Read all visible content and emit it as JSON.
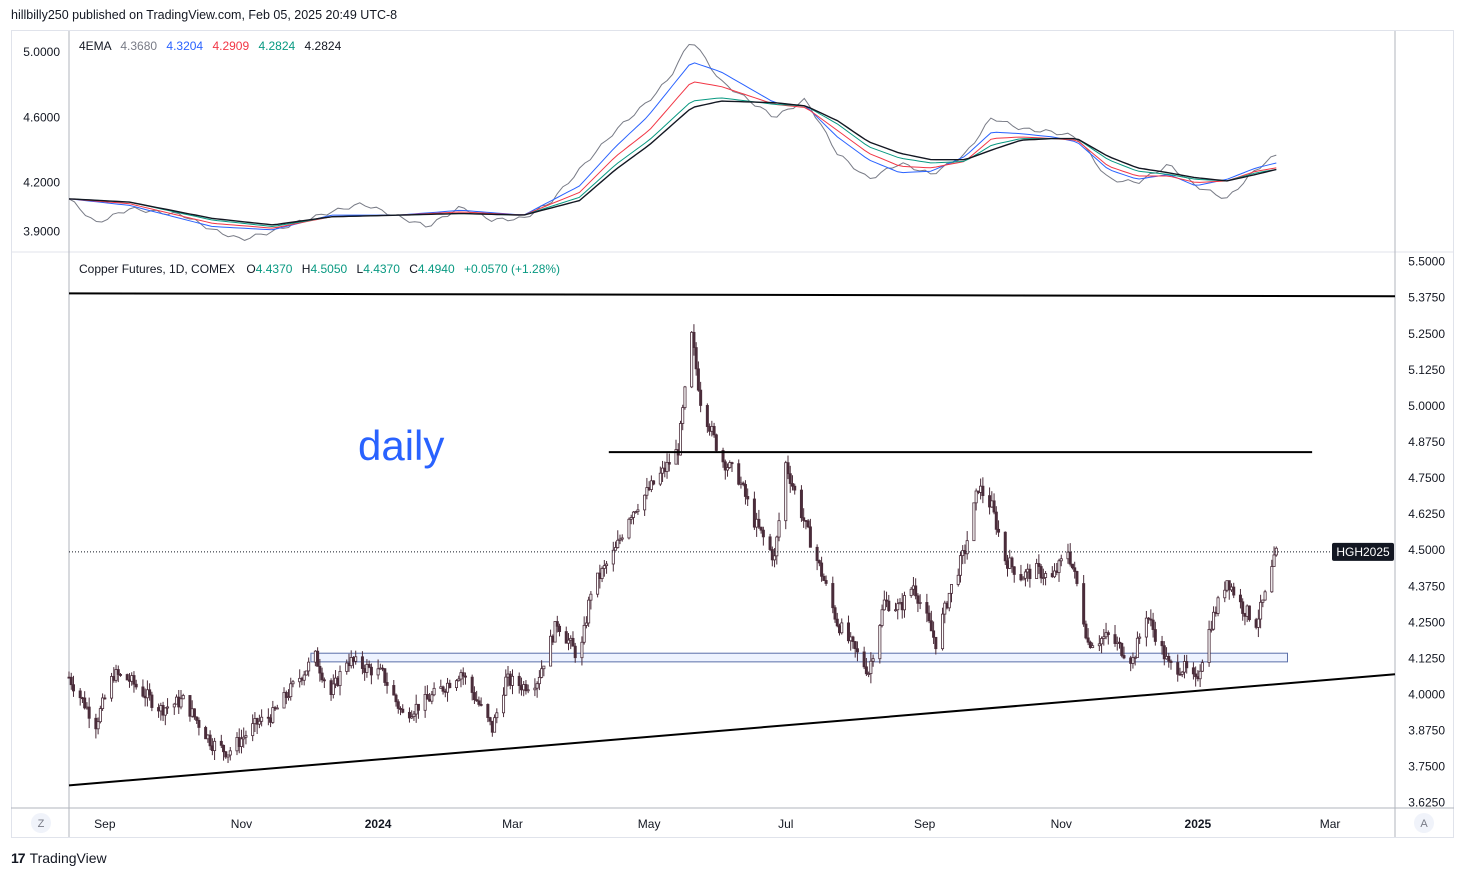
{
  "header": {
    "text": "hillbilly250 published on TradingView.com, Feb 05, 2025 20:49 UTC-8"
  },
  "footer": {
    "brand": "TradingView",
    "logo": "17"
  },
  "ema_legend": {
    "name": "4EMA",
    "values": [
      {
        "text": "4.3680",
        "color": "#787b86"
      },
      {
        "text": "4.3204",
        "color": "#2962ff"
      },
      {
        "text": "4.2909",
        "color": "#f23645"
      },
      {
        "text": "4.2824",
        "color": "#089981"
      },
      {
        "text": "4.2824",
        "color": "#131722"
      }
    ]
  },
  "ohlc_legend": {
    "symbol": "Copper Futures, 1D, COMEX",
    "o_label": "O",
    "o": "4.4370",
    "h_label": "H",
    "h": "4.5050",
    "l_label": "L",
    "l": "4.4370",
    "c_label": "C",
    "c": "4.4940",
    "change": "+0.0570 (+1.28%)",
    "value_color": "#089981"
  },
  "annotation": {
    "text": "daily",
    "color": "#2962ff"
  },
  "price_tag": {
    "text": "HGH2025"
  },
  "axis_buttons": {
    "left": "Z",
    "right": "A"
  },
  "chart_data": [
    {
      "type": "line",
      "title": "4EMA",
      "y_ticks": [
        "5.0000",
        "4.6000",
        "4.2000",
        "3.9000"
      ],
      "ylim": [
        3.78,
        5.13
      ],
      "x_start": "2023-08-16",
      "x_end": "2025-02-05",
      "series": [
        {
          "color": "#787b86",
          "x": [
            "2023-08-16",
            "2023-08-28",
            "2023-09-12",
            "2023-10-06",
            "2023-10-19",
            "2023-11-01",
            "2023-11-15",
            "2023-11-27",
            "2023-12-11",
            "2023-12-25",
            "2024-01-10",
            "2024-01-23",
            "2024-02-07",
            "2024-02-21",
            "2024-03-06",
            "2024-03-18",
            "2024-03-31",
            "2024-04-16",
            "2024-04-30",
            "2024-05-10",
            "2024-05-20",
            "2024-06-02",
            "2024-06-14",
            "2024-06-26",
            "2024-07-10",
            "2024-07-24",
            "2024-08-07",
            "2024-08-21",
            "2024-09-04",
            "2024-09-19",
            "2024-10-01",
            "2024-10-14",
            "2024-10-28",
            "2024-11-08",
            "2024-11-22",
            "2024-12-05",
            "2024-12-19",
            "2024-12-31",
            "2025-01-14",
            "2025-01-27",
            "2025-02-05"
          ],
          "values": [
            4.1,
            3.95,
            4.04,
            4.0,
            3.91,
            3.85,
            3.9,
            3.96,
            4.02,
            4.07,
            3.99,
            3.93,
            4.05,
            3.97,
            3.98,
            4.08,
            4.28,
            4.52,
            4.69,
            4.84,
            5.08,
            4.82,
            4.71,
            4.6,
            4.71,
            4.38,
            4.22,
            4.32,
            4.25,
            4.37,
            4.6,
            4.53,
            4.51,
            4.48,
            4.22,
            4.2,
            4.31,
            4.18,
            4.1,
            4.28,
            4.37
          ]
        },
        {
          "color": "#2962ff",
          "x": [
            "2023-08-16",
            "2023-09-12",
            "2023-10-19",
            "2023-11-15",
            "2023-12-11",
            "2024-01-10",
            "2024-02-07",
            "2024-03-06",
            "2024-03-31",
            "2024-04-16",
            "2024-04-30",
            "2024-05-20",
            "2024-06-02",
            "2024-06-26",
            "2024-07-10",
            "2024-07-24",
            "2024-08-07",
            "2024-08-21",
            "2024-09-04",
            "2024-09-19",
            "2024-10-01",
            "2024-10-14",
            "2024-10-28",
            "2024-11-08",
            "2024-11-22",
            "2024-12-05",
            "2024-12-19",
            "2024-12-31",
            "2025-01-14",
            "2025-01-27",
            "2025-02-05"
          ],
          "values": [
            4.1,
            4.06,
            3.93,
            3.91,
            4.0,
            4.0,
            4.03,
            4.0,
            4.18,
            4.42,
            4.6,
            4.94,
            4.88,
            4.69,
            4.67,
            4.48,
            4.34,
            4.26,
            4.27,
            4.36,
            4.51,
            4.5,
            4.48,
            4.45,
            4.28,
            4.22,
            4.25,
            4.18,
            4.22,
            4.29,
            4.32
          ]
        },
        {
          "color": "#f23645",
          "x": [
            "2023-08-16",
            "2023-09-12",
            "2023-10-19",
            "2023-11-15",
            "2023-12-11",
            "2024-01-10",
            "2024-02-07",
            "2024-03-06",
            "2024-03-31",
            "2024-04-16",
            "2024-05-01",
            "2024-05-20",
            "2024-06-02",
            "2024-06-26",
            "2024-07-10",
            "2024-07-24",
            "2024-08-07",
            "2024-08-21",
            "2024-09-04",
            "2024-09-19",
            "2024-10-01",
            "2024-10-14",
            "2024-10-28",
            "2024-11-08",
            "2024-11-22",
            "2024-12-05",
            "2024-12-19",
            "2024-12-31",
            "2025-01-14",
            "2025-01-27",
            "2025-02-05"
          ],
          "values": [
            4.1,
            4.07,
            3.95,
            3.92,
            3.99,
            4.0,
            4.02,
            4.0,
            4.14,
            4.36,
            4.52,
            4.82,
            4.79,
            4.68,
            4.66,
            4.52,
            4.38,
            4.3,
            4.29,
            4.33,
            4.47,
            4.48,
            4.47,
            4.46,
            4.3,
            4.24,
            4.24,
            4.2,
            4.21,
            4.27,
            4.29
          ]
        },
        {
          "color": "#089981",
          "x": [
            "2023-08-16",
            "2023-09-12",
            "2023-10-19",
            "2023-11-15",
            "2023-12-11",
            "2024-01-10",
            "2024-02-07",
            "2024-03-06",
            "2024-03-31",
            "2024-04-16",
            "2024-05-01",
            "2024-05-20",
            "2024-06-02",
            "2024-06-26",
            "2024-07-10",
            "2024-07-24",
            "2024-08-07",
            "2024-08-21",
            "2024-09-04",
            "2024-09-19",
            "2024-10-01",
            "2024-10-14",
            "2024-10-28",
            "2024-11-08",
            "2024-11-22",
            "2024-12-05",
            "2024-12-19",
            "2024-12-31",
            "2025-01-14",
            "2025-01-27",
            "2025-02-05"
          ],
          "values": [
            4.1,
            4.08,
            3.97,
            3.93,
            3.99,
            4.0,
            4.01,
            4.0,
            4.11,
            4.31,
            4.46,
            4.7,
            4.72,
            4.68,
            4.67,
            4.56,
            4.42,
            4.35,
            4.32,
            4.33,
            4.43,
            4.47,
            4.47,
            4.47,
            4.34,
            4.27,
            4.25,
            4.22,
            4.21,
            4.26,
            4.28
          ]
        },
        {
          "color": "#131722",
          "x": [
            "2023-08-16",
            "2023-09-12",
            "2023-10-19",
            "2023-11-15",
            "2023-12-11",
            "2024-01-10",
            "2024-02-07",
            "2024-03-06",
            "2024-03-31",
            "2024-04-16",
            "2024-05-01",
            "2024-05-20",
            "2024-06-02",
            "2024-06-26",
            "2024-07-10",
            "2024-07-24",
            "2024-08-07",
            "2024-08-21",
            "2024-09-04",
            "2024-09-19",
            "2024-10-01",
            "2024-10-14",
            "2024-10-28",
            "2024-11-08",
            "2024-11-22",
            "2024-12-05",
            "2024-12-19",
            "2024-12-31",
            "2025-01-14",
            "2025-01-27",
            "2025-02-05"
          ],
          "values": [
            4.1,
            4.08,
            3.98,
            3.94,
            3.99,
            4.0,
            4.01,
            4.0,
            4.09,
            4.28,
            4.43,
            4.66,
            4.7,
            4.69,
            4.67,
            4.58,
            4.45,
            4.38,
            4.34,
            4.34,
            4.4,
            4.46,
            4.47,
            4.47,
            4.36,
            4.29,
            4.26,
            4.23,
            4.21,
            4.25,
            4.28
          ]
        }
      ]
    },
    {
      "type": "candlestick",
      "title": "Copper Futures, 1D, COMEX",
      "y_ticks": [
        "5.5000",
        "5.3750",
        "5.2500",
        "5.1250",
        "5.0000",
        "4.8750",
        "4.7500",
        "4.6250",
        "4.5000",
        "4.3750",
        "4.2500",
        "4.1250",
        "4.0000",
        "3.8750",
        "3.7500",
        "3.6250"
      ],
      "x_ticks": [
        {
          "label": "Sep",
          "date": "2023-09-01"
        },
        {
          "label": "Nov",
          "date": "2023-11-01"
        },
        {
          "label": "2024",
          "date": "2024-01-01",
          "bold": true
        },
        {
          "label": "Mar",
          "date": "2024-03-01"
        },
        {
          "label": "May",
          "date": "2024-05-01"
        },
        {
          "label": "Jul",
          "date": "2024-07-01"
        },
        {
          "label": "Sep",
          "date": "2024-09-01"
        },
        {
          "label": "Nov",
          "date": "2024-11-01"
        },
        {
          "label": "2025",
          "date": "2025-01-01",
          "bold": true
        },
        {
          "label": "Mar",
          "date": "2025-03-01"
        }
      ],
      "ylim": [
        3.61,
        5.53
      ],
      "x_range": [
        "2023-08-16",
        "2025-03-30"
      ],
      "last_close": 4.494,
      "price_path": {
        "x": [
          "2023-08-16",
          "2023-08-28",
          "2023-09-05",
          "2023-09-12",
          "2023-09-26",
          "2023-10-06",
          "2023-10-19",
          "2023-10-26",
          "2023-11-08",
          "2023-11-15",
          "2023-11-27",
          "2023-12-04",
          "2023-12-11",
          "2023-12-18",
          "2024-01-03",
          "2024-01-12",
          "2024-01-23",
          "2024-01-31",
          "2024-02-07",
          "2024-02-21",
          "2024-02-27",
          "2024-03-06",
          "2024-03-12",
          "2024-03-21",
          "2024-03-31",
          "2024-04-05",
          "2024-04-16",
          "2024-04-22",
          "2024-04-30",
          "2024-05-08",
          "2024-05-14",
          "2024-05-20",
          "2024-05-24",
          "2024-06-02",
          "2024-06-10",
          "2024-06-17",
          "2024-06-26",
          "2024-07-01",
          "2024-07-10",
          "2024-07-17",
          "2024-07-24",
          "2024-08-01",
          "2024-08-07",
          "2024-08-14",
          "2024-08-21",
          "2024-08-27",
          "2024-09-06",
          "2024-09-12",
          "2024-09-19",
          "2024-09-25",
          "2024-10-01",
          "2024-10-07",
          "2024-10-14",
          "2024-10-21",
          "2024-10-28",
          "2024-11-04",
          "2024-11-08",
          "2024-11-13",
          "2024-11-22",
          "2024-12-03",
          "2024-12-09",
          "2024-12-19",
          "2024-12-26",
          "2024-12-31",
          "2025-01-07",
          "2025-01-14",
          "2025-01-21",
          "2025-01-27",
          "2025-01-31",
          "2025-02-05"
        ],
        "values": [
          4.06,
          3.9,
          4.07,
          4.05,
          3.95,
          3.98,
          3.83,
          3.8,
          3.9,
          3.93,
          4.06,
          4.13,
          4.0,
          4.12,
          4.07,
          3.93,
          3.98,
          4.03,
          4.08,
          3.88,
          4.05,
          4.03,
          4.05,
          4.25,
          4.12,
          4.36,
          4.5,
          4.62,
          4.7,
          4.78,
          4.85,
          5.24,
          5.02,
          4.82,
          4.75,
          4.6,
          4.47,
          4.8,
          4.58,
          4.42,
          4.25,
          4.15,
          4.08,
          4.32,
          4.3,
          4.38,
          4.18,
          4.35,
          4.5,
          4.72,
          4.65,
          4.47,
          4.41,
          4.43,
          4.4,
          4.5,
          4.38,
          4.18,
          4.2,
          4.12,
          4.28,
          4.1,
          4.09,
          4.04,
          4.25,
          4.4,
          4.3,
          4.25,
          4.34,
          4.49
        ]
      },
      "trendlines": [
        {
          "name": "resistance-top",
          "x": [
            "2023-08-16",
            "2025-03-30"
          ],
          "y": [
            5.39,
            5.38
          ]
        },
        {
          "name": "resistance-mid",
          "x": [
            "2024-04-13",
            "2025-02-21"
          ],
          "y": [
            4.84,
            4.84
          ]
        },
        {
          "name": "rising-support",
          "x": [
            "2023-08-16",
            "2025-03-30"
          ],
          "y": [
            3.685,
            4.07
          ]
        }
      ],
      "support_zone": {
        "x": [
          "2023-12-02",
          "2025-02-10"
        ],
        "y": [
          4.113,
          4.143
        ]
      }
    }
  ]
}
